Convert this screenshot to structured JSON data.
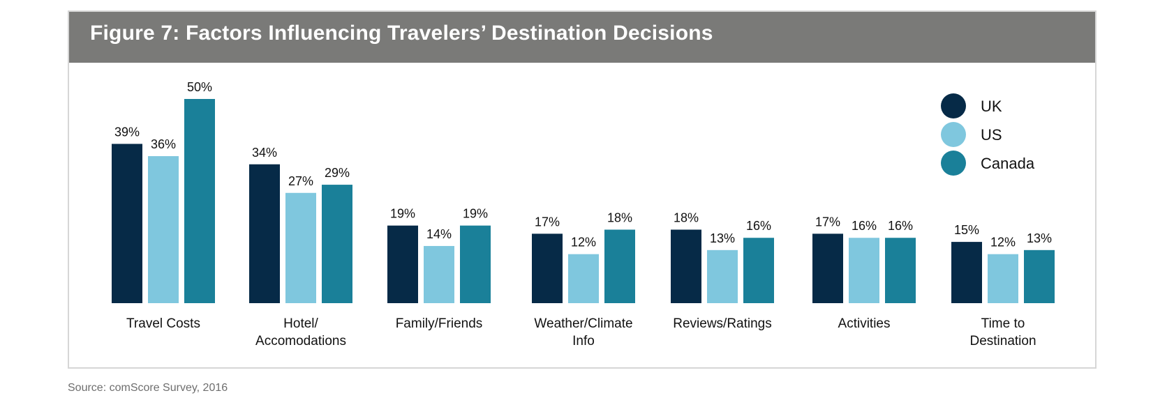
{
  "header": {
    "title": "Figure 7: Factors Influencing Travelers’ Destination Decisions"
  },
  "footer": {
    "source": "Source: comScore Survey, 2016"
  },
  "chart_data": {
    "type": "bar",
    "title": "Figure 7: Factors Influencing Travelers’ Destination Decisions",
    "xlabel": "",
    "ylabel": "",
    "ylim": [
      0,
      50
    ],
    "grid": false,
    "legend_position": "top-right",
    "value_suffix": "%",
    "categories": [
      [
        "Travel Costs"
      ],
      [
        "Hotel/",
        "Accomodations"
      ],
      [
        "Family/Friends"
      ],
      [
        "Weather/Climate",
        "Info"
      ],
      [
        "Reviews/Ratings"
      ],
      [
        "Activities"
      ],
      [
        "Time to",
        "Destination"
      ]
    ],
    "series": [
      {
        "name": "UK",
        "color": "#062a47",
        "values": [
          39,
          34,
          19,
          17,
          18,
          17,
          15
        ]
      },
      {
        "name": "US",
        "color": "#7fc7de",
        "values": [
          36,
          27,
          14,
          12,
          13,
          16,
          12
        ]
      },
      {
        "name": "Canada",
        "color": "#1a8099",
        "values": [
          50,
          29,
          19,
          18,
          16,
          16,
          13
        ]
      }
    ]
  }
}
